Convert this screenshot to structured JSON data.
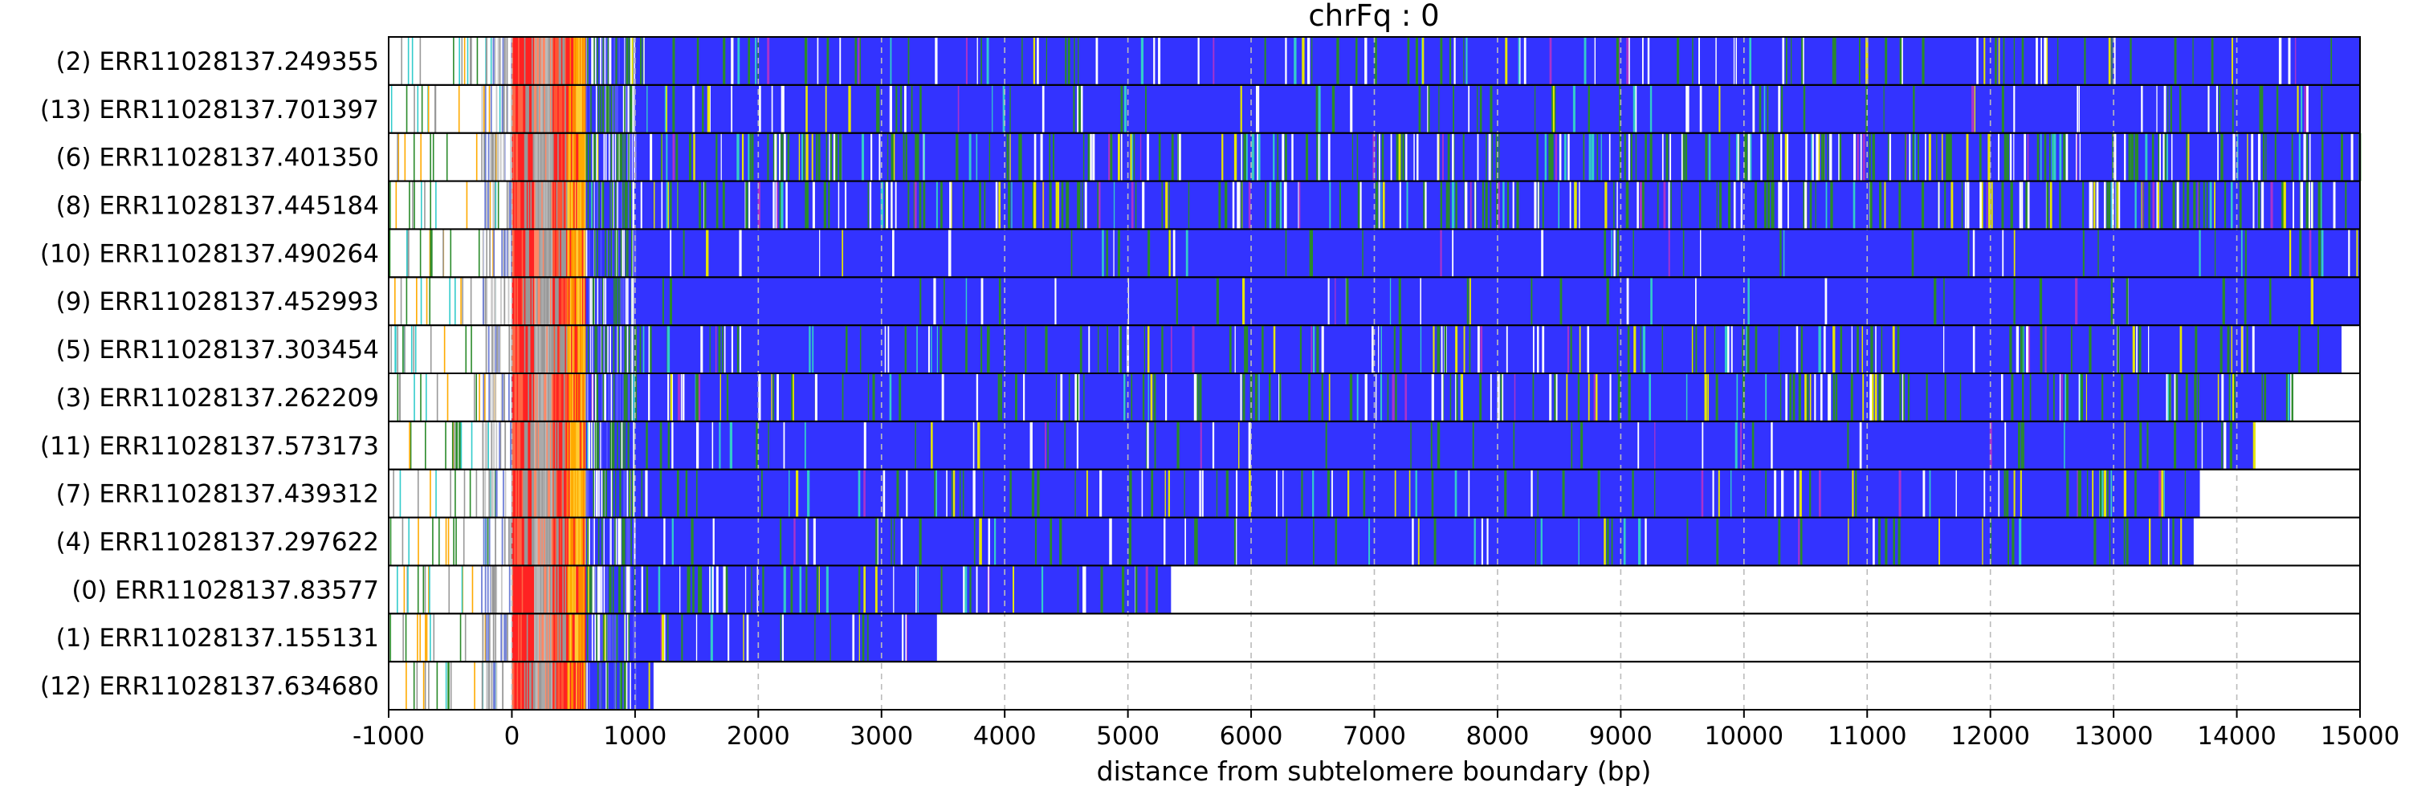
{
  "chart_data": {
    "type": "heatmap",
    "title": "chrFq : 0",
    "xlabel": "distance from subtelomere boundary (bp)",
    "xlim": [
      -1000,
      15000
    ],
    "x_ticks": [
      -1000,
      0,
      1000,
      2000,
      3000,
      4000,
      5000,
      6000,
      7000,
      8000,
      9000,
      10000,
      11000,
      12000,
      13000,
      14000,
      15000
    ],
    "x_tick_labels": [
      "-1000",
      "0",
      "1000",
      "2000",
      "3000",
      "4000",
      "5000",
      "6000",
      "7000",
      "8000",
      "9000",
      "10000",
      "11000",
      "12000",
      "13000",
      "14000",
      "15000"
    ],
    "grid": "vertical dashed",
    "subtelomere_region_end": 600,
    "rows": [
      {
        "label": "(2) ERR11028137.249355",
        "read_end": 15000,
        "variability": 0.35
      },
      {
        "label": "(13) ERR11028137.701397",
        "read_end": 15000,
        "variability": 0.3
      },
      {
        "label": "(6) ERR11028137.401350",
        "read_end": 15000,
        "variability": 0.85
      },
      {
        "label": "(8) ERR11028137.445184",
        "read_end": 15000,
        "variability": 0.8
      },
      {
        "label": "(10) ERR11028137.490264",
        "read_end": 15000,
        "variability": 0.15
      },
      {
        "label": "(9) ERR11028137.452993",
        "read_end": 15000,
        "variability": 0.12
      },
      {
        "label": "(5) ERR11028137.303454",
        "read_end": 14850,
        "variability": 0.45
      },
      {
        "label": "(3) ERR11028137.262209",
        "read_end": 14450,
        "variability": 0.55
      },
      {
        "label": "(11) ERR11028137.573173",
        "read_end": 14150,
        "variability": 0.2
      },
      {
        "label": "(7) ERR11028137.439312",
        "read_end": 13700,
        "variability": 0.35
      },
      {
        "label": "(4) ERR11028137.297622",
        "read_end": 13650,
        "variability": 0.25
      },
      {
        "label": "(0) ERR11028137.83577",
        "read_end": 5350,
        "variability": 0.5
      },
      {
        "label": "(1) ERR11028137.155131",
        "read_end": 3450,
        "variability": 0.4
      },
      {
        "label": "(12) ERR11028137.634680",
        "read_end": 1150,
        "variability": 0.3
      }
    ],
    "colors": {
      "repeat_base": "#3333ff",
      "variant_green": "#2a8a2a",
      "variant_light": "#ffffff",
      "variant_yellow": "#e6e600",
      "variant_cyan": "#33cccc",
      "variant_purple": "#aa33cc",
      "subtelomere_red": "#ff2222",
      "subtelomere_orange": "#ffaa00",
      "subtelomere_gray": "#999999",
      "grid": "#bbbbbb",
      "border": "#000000"
    }
  }
}
